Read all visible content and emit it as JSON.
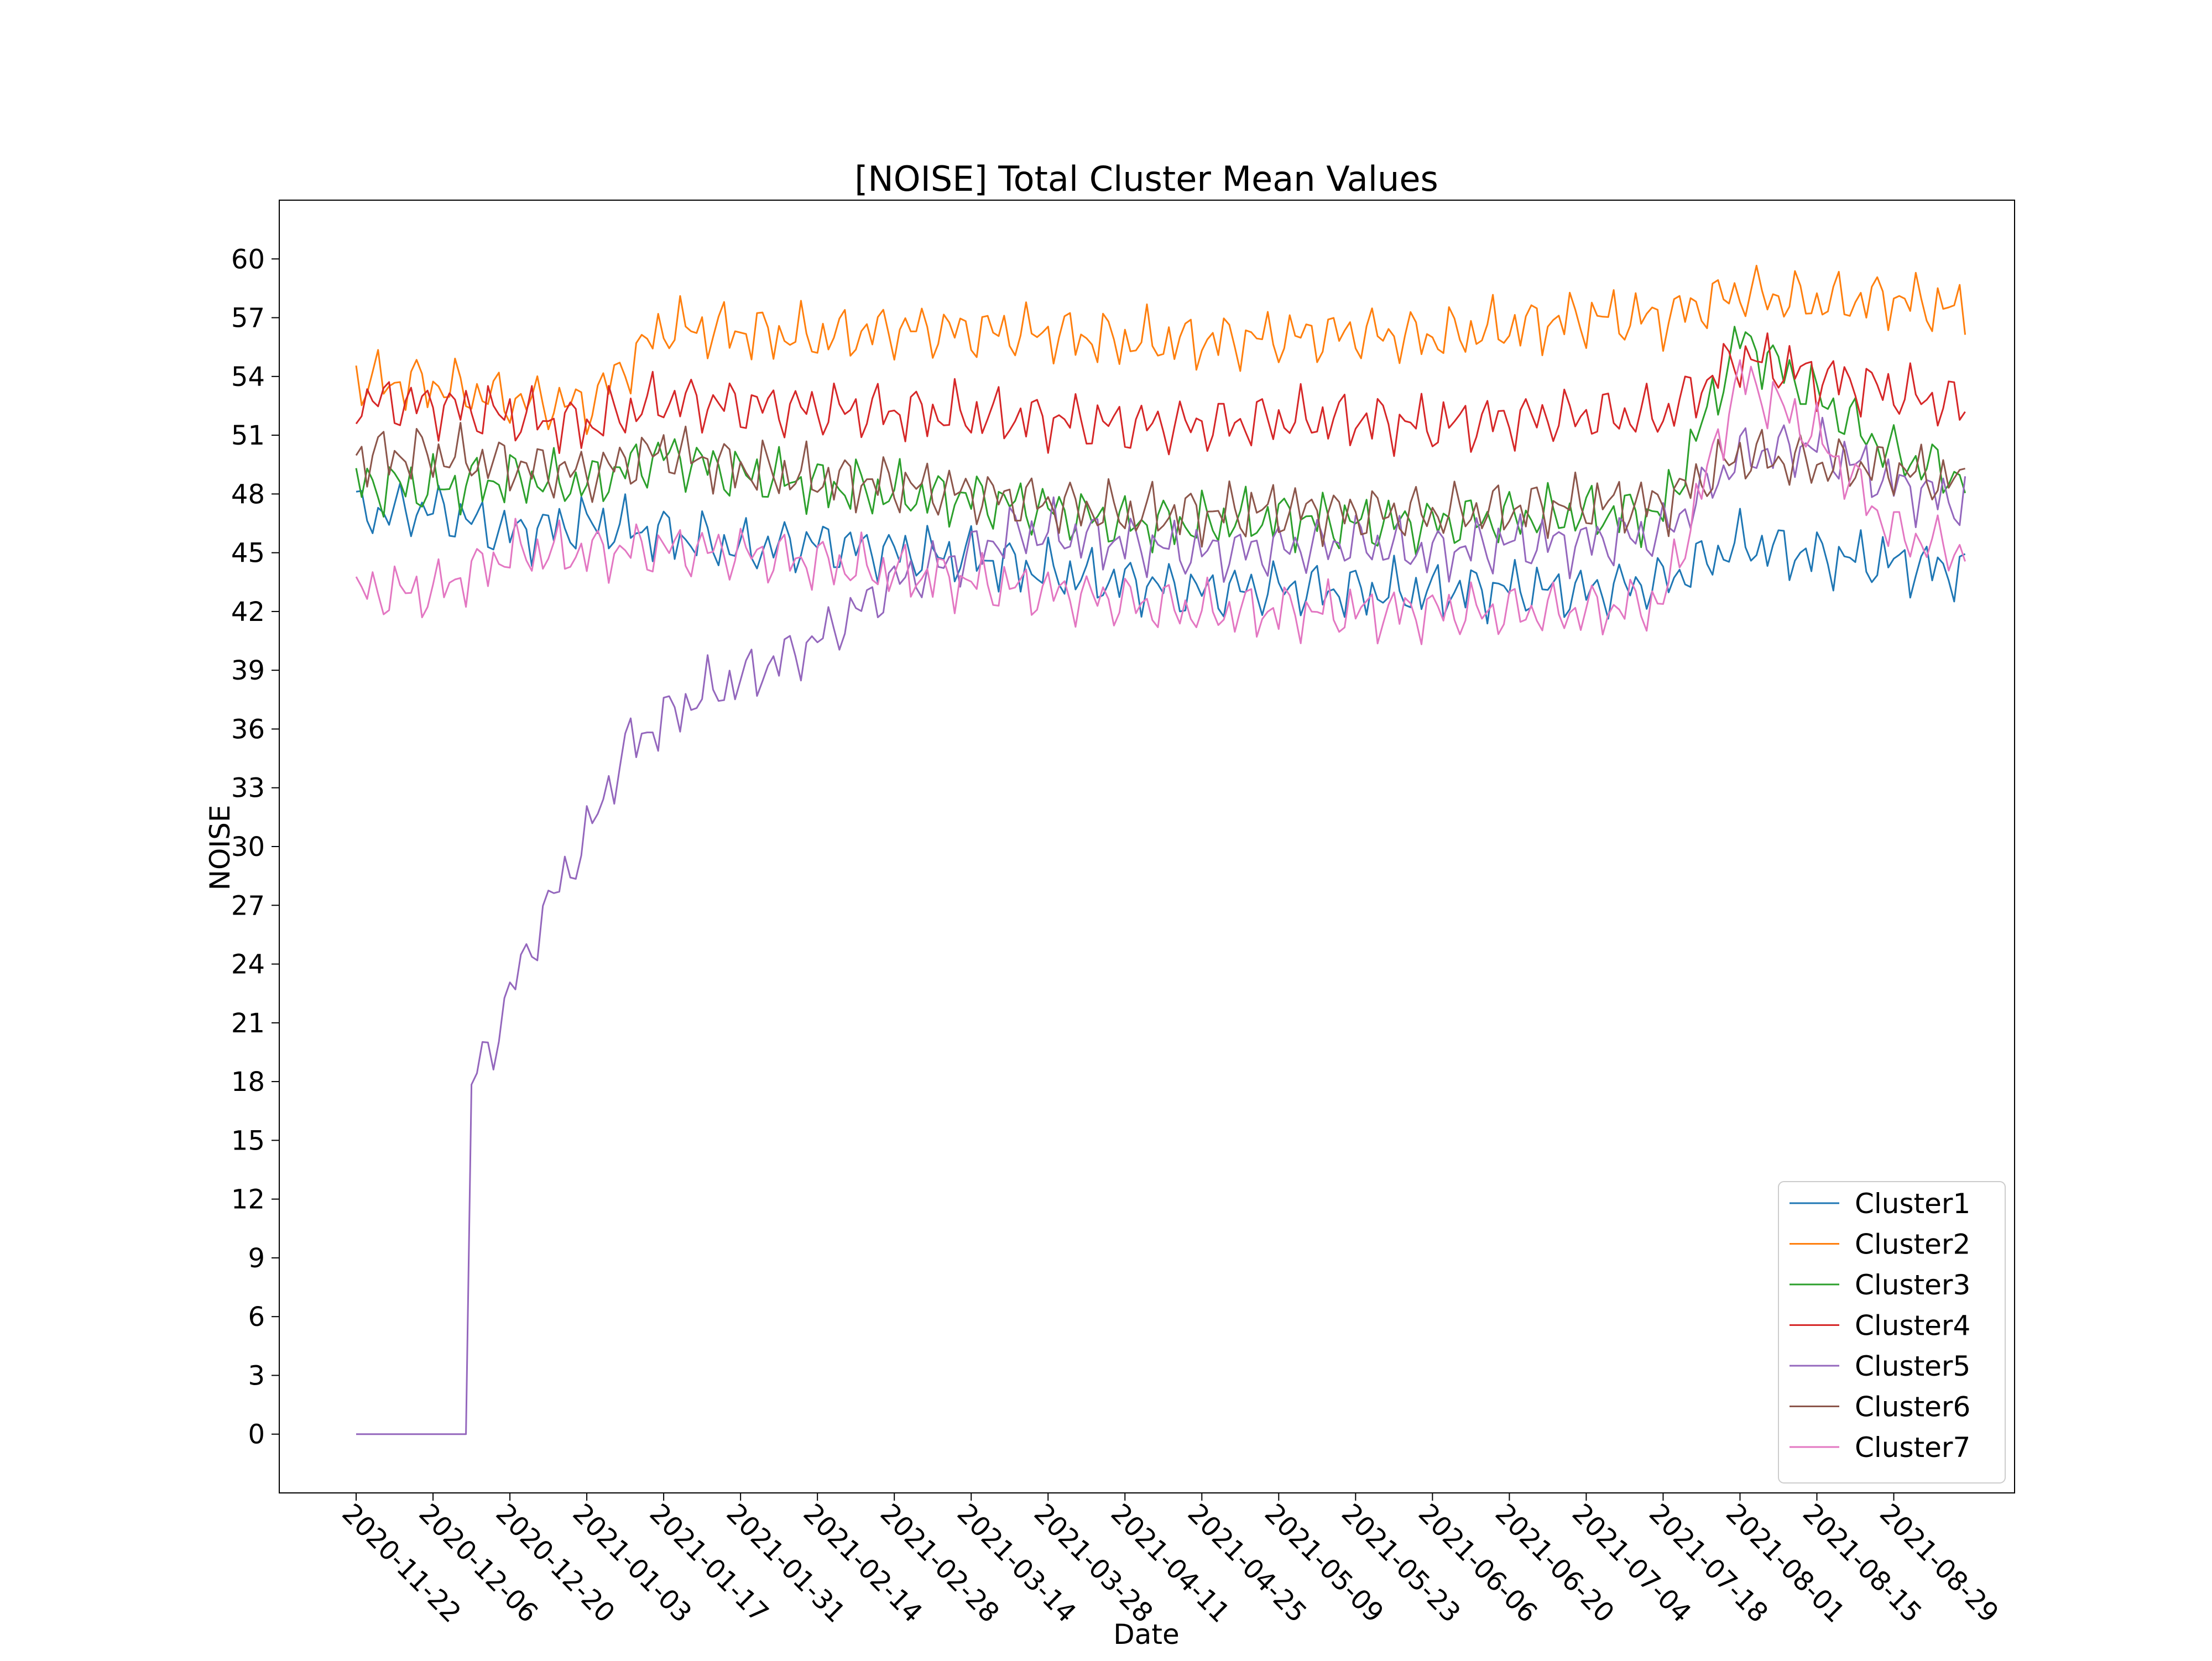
{
  "chart_data": {
    "type": "line",
    "title": "[NOISE] Total Cluster Mean Values",
    "xlabel": "Date",
    "ylabel": "NOISE",
    "x_start": "2020-11-22",
    "x_end": "2021-09-11",
    "xlim": [
      "2020-11-08",
      "2021-09-20"
    ],
    "ylim": [
      -3,
      63
    ],
    "xticks": [
      "2020-11-22",
      "2020-12-06",
      "2020-12-20",
      "2021-01-03",
      "2021-01-17",
      "2021-01-31",
      "2021-02-14",
      "2021-02-28",
      "2021-03-14",
      "2021-03-28",
      "2021-04-11",
      "2021-04-25",
      "2021-05-09",
      "2021-05-23",
      "2021-06-06",
      "2021-06-20",
      "2021-07-04",
      "2021-07-18",
      "2021-08-01",
      "2021-08-15",
      "2021-08-29"
    ],
    "yticks": [
      0,
      3,
      6,
      9,
      12,
      15,
      18,
      21,
      24,
      27,
      30,
      33,
      36,
      39,
      42,
      45,
      48,
      51,
      54,
      57,
      60
    ],
    "grid": false,
    "legend_position": "lower-right",
    "series": [
      {
        "name": "Cluster1",
        "color": "#1f77b4",
        "points": [
          [
            "2020-11-22",
            47
          ],
          [
            "2020-12-06",
            47.2
          ],
          [
            "2020-12-20",
            46
          ],
          [
            "2021-01-03",
            46.5
          ],
          [
            "2021-01-17",
            46
          ],
          [
            "2021-01-31",
            45.2
          ],
          [
            "2021-02-14",
            45.5
          ],
          [
            "2021-02-28",
            45
          ],
          [
            "2021-03-14",
            44.8
          ],
          [
            "2021-03-28",
            44
          ],
          [
            "2021-04-11",
            43.5
          ],
          [
            "2021-04-25",
            43
          ],
          [
            "2021-05-09",
            43.2
          ],
          [
            "2021-05-23",
            43
          ],
          [
            "2021-06-06",
            43
          ],
          [
            "2021-06-20",
            43.2
          ],
          [
            "2021-07-04",
            43
          ],
          [
            "2021-07-18",
            43.5
          ],
          [
            "2021-08-01",
            45.5
          ],
          [
            "2021-08-15",
            44.8
          ],
          [
            "2021-08-29",
            44.5
          ],
          [
            "2021-09-11",
            44
          ]
        ]
      },
      {
        "name": "Cluster2",
        "color": "#ff7f0e",
        "points": [
          [
            "2020-11-22",
            53.8
          ],
          [
            "2020-12-06",
            53.6
          ],
          [
            "2020-12-20",
            52.8
          ],
          [
            "2021-01-03",
            52.5
          ],
          [
            "2021-01-17",
            56.5
          ],
          [
            "2021-01-31",
            56.3
          ],
          [
            "2021-02-14",
            56
          ],
          [
            "2021-02-28",
            56.4
          ],
          [
            "2021-03-14",
            56.3
          ],
          [
            "2021-03-28",
            56.2
          ],
          [
            "2021-04-11",
            55.8
          ],
          [
            "2021-04-25",
            55.8
          ],
          [
            "2021-05-09",
            56
          ],
          [
            "2021-05-23",
            56.2
          ],
          [
            "2021-06-06",
            56
          ],
          [
            "2021-06-20",
            56.5
          ],
          [
            "2021-07-04",
            57
          ],
          [
            "2021-07-18",
            57
          ],
          [
            "2021-08-01",
            58.3
          ],
          [
            "2021-08-15",
            57.8
          ],
          [
            "2021-08-29",
            58
          ],
          [
            "2021-09-11",
            57.3
          ]
        ]
      },
      {
        "name": "Cluster3",
        "color": "#2ca02c",
        "points": [
          [
            "2020-11-22",
            48.5
          ],
          [
            "2020-12-06",
            48.3
          ],
          [
            "2020-12-20",
            48.8
          ],
          [
            "2021-01-03",
            48.5
          ],
          [
            "2021-01-17",
            50
          ],
          [
            "2021-01-31",
            49
          ],
          [
            "2021-02-14",
            48.5
          ],
          [
            "2021-02-28",
            48
          ],
          [
            "2021-03-14",
            47.8
          ],
          [
            "2021-03-28",
            47.2
          ],
          [
            "2021-04-11",
            46.5
          ],
          [
            "2021-04-25",
            46.5
          ],
          [
            "2021-05-09",
            46.8
          ],
          [
            "2021-05-23",
            46.5
          ],
          [
            "2021-06-06",
            46.5
          ],
          [
            "2021-06-20",
            46.8
          ],
          [
            "2021-07-04",
            47
          ],
          [
            "2021-07-18",
            47
          ],
          [
            "2021-08-01",
            56
          ],
          [
            "2021-08-15",
            53
          ],
          [
            "2021-08-29",
            50
          ],
          [
            "2021-09-11",
            48.8
          ]
        ]
      },
      {
        "name": "Cluster4",
        "color": "#d62728",
        "points": [
          [
            "2020-11-22",
            52.8
          ],
          [
            "2020-12-06",
            52.5
          ],
          [
            "2020-12-20",
            52
          ],
          [
            "2021-01-03",
            51.5
          ],
          [
            "2021-01-17",
            52.8
          ],
          [
            "2021-01-31",
            52.5
          ],
          [
            "2021-02-14",
            52.3
          ],
          [
            "2021-02-28",
            52.2
          ],
          [
            "2021-03-14",
            52
          ],
          [
            "2021-03-28",
            51.8
          ],
          [
            "2021-04-11",
            51.5
          ],
          [
            "2021-04-25",
            51.5
          ],
          [
            "2021-05-09",
            51.8
          ],
          [
            "2021-05-23",
            51.8
          ],
          [
            "2021-06-06",
            51.5
          ],
          [
            "2021-06-20",
            51.8
          ],
          [
            "2021-07-04",
            52
          ],
          [
            "2021-07-18",
            52
          ],
          [
            "2021-08-01",
            55
          ],
          [
            "2021-08-15",
            54
          ],
          [
            "2021-08-29",
            53.2
          ],
          [
            "2021-09-11",
            52.5
          ]
        ]
      },
      {
        "name": "Cluster5",
        "color": "#9467bd",
        "points": [
          [
            "2020-11-22",
            0
          ],
          [
            "2020-11-29",
            0
          ],
          [
            "2020-12-06",
            0
          ],
          [
            "2020-12-12",
            0
          ],
          [
            "2020-12-13",
            18
          ],
          [
            "2020-12-17",
            20
          ],
          [
            "2020-12-20",
            22.5
          ],
          [
            "2020-12-27",
            27
          ],
          [
            "2021-01-03",
            30.5
          ],
          [
            "2021-01-10",
            35
          ],
          [
            "2021-01-17",
            36.5
          ],
          [
            "2021-01-24",
            37.8
          ],
          [
            "2021-01-31",
            38.5
          ],
          [
            "2021-02-07",
            39.5
          ],
          [
            "2021-02-14",
            40.5
          ],
          [
            "2021-02-21",
            42
          ],
          [
            "2021-02-28",
            43.5
          ],
          [
            "2021-03-07",
            44.2
          ],
          [
            "2021-03-14",
            45
          ],
          [
            "2021-03-21",
            46
          ],
          [
            "2021-03-28",
            46
          ],
          [
            "2021-04-11",
            45.5
          ],
          [
            "2021-04-25",
            45
          ],
          [
            "2021-05-09",
            45.2
          ],
          [
            "2021-05-23",
            45.5
          ],
          [
            "2021-06-06",
            45
          ],
          [
            "2021-06-20",
            45.5
          ],
          [
            "2021-07-04",
            45.5
          ],
          [
            "2021-07-18",
            46
          ],
          [
            "2021-08-01",
            50
          ],
          [
            "2021-08-15",
            50.5
          ],
          [
            "2021-08-29",
            48.5
          ],
          [
            "2021-09-11",
            47.5
          ]
        ]
      },
      {
        "name": "Cluster6",
        "color": "#8c564b",
        "points": [
          [
            "2020-11-22",
            50
          ],
          [
            "2020-12-06",
            50
          ],
          [
            "2020-12-20",
            49.5
          ],
          [
            "2021-01-03",
            49
          ],
          [
            "2021-01-17",
            50.2
          ],
          [
            "2021-01-31",
            49.3
          ],
          [
            "2021-02-14",
            48.8
          ],
          [
            "2021-02-28",
            48.5
          ],
          [
            "2021-03-14",
            48
          ],
          [
            "2021-03-28",
            47.5
          ],
          [
            "2021-04-11",
            47
          ],
          [
            "2021-04-25",
            47
          ],
          [
            "2021-05-09",
            47.2
          ],
          [
            "2021-05-23",
            47
          ],
          [
            "2021-06-06",
            47
          ],
          [
            "2021-06-20",
            47.2
          ],
          [
            "2021-07-04",
            47.5
          ],
          [
            "2021-07-18",
            47.5
          ],
          [
            "2021-08-01",
            50
          ],
          [
            "2021-08-15",
            49.5
          ],
          [
            "2021-08-29",
            49.3
          ],
          [
            "2021-09-11",
            48.5
          ]
        ]
      },
      {
        "name": "Cluster7",
        "color": "#e377c2",
        "points": [
          [
            "2020-11-22",
            43
          ],
          [
            "2020-12-06",
            43
          ],
          [
            "2020-12-20",
            45
          ],
          [
            "2021-01-03",
            45
          ],
          [
            "2021-01-17",
            45.2
          ],
          [
            "2021-01-31",
            45
          ],
          [
            "2021-02-14",
            44.5
          ],
          [
            "2021-02-28",
            44
          ],
          [
            "2021-03-14",
            43.5
          ],
          [
            "2021-03-28",
            43
          ],
          [
            "2021-04-11",
            42.5
          ],
          [
            "2021-04-25",
            42
          ],
          [
            "2021-05-09",
            42
          ],
          [
            "2021-05-23",
            42
          ],
          [
            "2021-06-06",
            42
          ],
          [
            "2021-06-20",
            42
          ],
          [
            "2021-07-04",
            42
          ],
          [
            "2021-07-18",
            42.5
          ],
          [
            "2021-08-01",
            54
          ],
          [
            "2021-08-15",
            51
          ],
          [
            "2021-08-29",
            46
          ],
          [
            "2021-09-11",
            45
          ]
        ]
      }
    ]
  }
}
